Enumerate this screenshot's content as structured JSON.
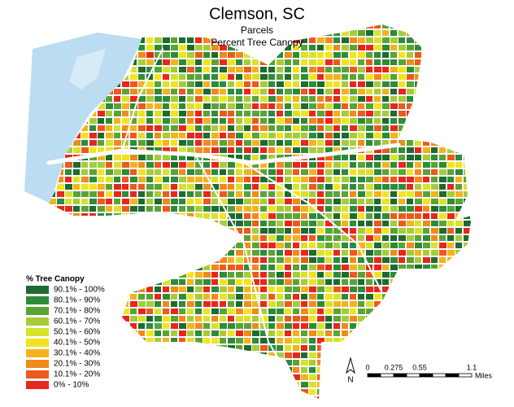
{
  "header": {
    "title": "Clemson, SC",
    "subtitle": "Parcels",
    "subtitle2": "Percent Tree Canopy"
  },
  "legend": {
    "title": "% Tree Canopy",
    "items": [
      {
        "label": "90.1% - 100%",
        "color": "#1d6b2e"
      },
      {
        "label": "80.1% - 90%",
        "color": "#2e8b3a"
      },
      {
        "label": "70.1% - 80%",
        "color": "#5aa336"
      },
      {
        "label": "60.1% - 70%",
        "color": "#a6cc3a"
      },
      {
        "label": "50.1% - 60%",
        "color": "#d8e22a"
      },
      {
        "label": "40.1% - 50%",
        "color": "#f2e41c"
      },
      {
        "label": "30.1% - 40%",
        "color": "#f4b21c"
      },
      {
        "label": "20.1% - 30%",
        "color": "#f08a1c"
      },
      {
        "label": "10.1% - 20%",
        "color": "#ec5a1c"
      },
      {
        "label": "0% - 10%",
        "color": "#e8261c"
      }
    ]
  },
  "scale_bar": {
    "ticks": [
      0,
      0.275,
      0.55,
      1.1
    ],
    "unit": "Miles"
  },
  "north_arrow": {
    "label": "N"
  }
}
